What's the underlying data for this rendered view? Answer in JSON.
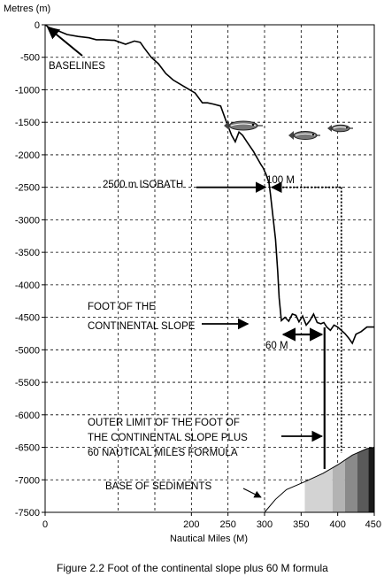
{
  "chart_data": {
    "type": "line",
    "title": "",
    "xlabel": "Nautical Miles (M)",
    "ylabel": "Metres (m)",
    "xlim": [
      0,
      450
    ],
    "ylim": [
      -7500,
      0
    ],
    "x_ticks": [
      0,
      200,
      250,
      300,
      350,
      400,
      450
    ],
    "x_tick_labels": [
      "0",
      "200",
      "250",
      "300",
      "350",
      "400",
      "450"
    ],
    "y_ticks": [
      0,
      -500,
      -1000,
      -1500,
      -2000,
      -2500,
      -3000,
      -3500,
      -4000,
      -4500,
      -5000,
      -5500,
      -6000,
      -6500,
      -7000,
      -7500
    ],
    "y_tick_labels": [
      "0",
      "-500",
      "-1000",
      "-1500",
      "-2000",
      "-2500",
      "-3000",
      "-3500",
      "-4000",
      "-4500",
      "-5000",
      "-5500",
      "-6000",
      "-6500",
      "-7000",
      "-7500"
    ],
    "grid_x": [
      100,
      150,
      200,
      250,
      300,
      350,
      400
    ],
    "grid_y": [
      -500,
      -1000,
      -1500,
      -2000,
      -2500,
      -3000,
      -3500,
      -4000,
      -4500,
      -5000,
      -5500,
      -6000,
      -6500,
      -7000
    ],
    "grid": true,
    "series": [
      {
        "x": [
          0,
          5,
          15,
          30,
          45,
          60,
          70,
          80,
          95,
          110,
          122,
          130,
          135,
          145,
          155,
          165,
          175,
          190,
          205,
          215,
          222,
          230,
          240,
          248,
          255,
          260,
          265,
          270,
          277,
          285,
          290,
          295,
          298,
          302,
          306,
          308,
          311,
          315,
          318,
          320,
          323,
          328,
          333,
          338,
          343,
          347,
          352,
          357,
          362,
          367,
          372,
          377,
          381,
          385,
          390,
          395,
          400,
          405,
          410,
          415,
          420,
          425,
          432,
          440,
          450
        ],
        "y": [
          0,
          -40,
          -80,
          -150,
          -180,
          -200,
          -230,
          -230,
          -240,
          -300,
          -250,
          -270,
          -350,
          -500,
          -600,
          -750,
          -850,
          -950,
          -1050,
          -1200,
          -1200,
          -1220,
          -1250,
          -1500,
          -1700,
          -1800,
          -1650,
          -1700,
          -1820,
          -1950,
          -2050,
          -2150,
          -2200,
          -2300,
          -2430,
          -2600,
          -2900,
          -3300,
          -3800,
          -4200,
          -4550,
          -4500,
          -4560,
          -4450,
          -4470,
          -4570,
          -4480,
          -4620,
          -4550,
          -4450,
          -4580,
          -4600,
          -4580,
          -4650,
          -4700,
          -4620,
          -4650,
          -4700,
          -4750,
          -4820,
          -4900,
          -4760,
          -4720,
          -4650,
          -4650
        ]
      }
    ],
    "sediment_blocks": [
      {
        "x0": 355,
        "x1": 393,
        "color": "#d3d3d3"
      },
      {
        "x0": 393,
        "x1": 410,
        "color": "#b3b3b3"
      },
      {
        "x0": 410,
        "x1": 427,
        "color": "#8a8a8a"
      },
      {
        "x0": 427,
        "x1": 442,
        "color": "#5a5a5a"
      },
      {
        "x0": 442,
        "x1": 450,
        "color": "#1a1a1a"
      }
    ],
    "sediment_top": {
      "x": [
        300,
        315,
        330,
        355,
        380,
        400,
        420,
        440,
        450
      ],
      "y": [
        -7500,
        -7300,
        -7150,
        -7030,
        -6900,
        -6770,
        -6620,
        -6520,
        -6500
      ]
    },
    "annotations": [
      {
        "id": "baselines",
        "text": "BASELINES"
      },
      {
        "id": "isobath",
        "text": "2500 m ISOBATH"
      },
      {
        "id": "distance100",
        "text": "100 M"
      },
      {
        "id": "foot_line1",
        "text": "FOOT OF THE"
      },
      {
        "id": "foot_line2",
        "text": "CONTINENTAL SLOPE"
      },
      {
        "id": "distance60",
        "text": "60 M"
      },
      {
        "id": "outer_line1",
        "text": "OUTER LIMIT OF THE FOOT OF"
      },
      {
        "id": "outer_line2",
        "text": "THE CONTINENTAL SLOPE PLUS"
      },
      {
        "id": "outer_line3",
        "text": "60 NAUTICAL MILES FORMULA"
      },
      {
        "id": "sediments",
        "text": "BASE OF SEDIMENTS"
      }
    ],
    "markers": {
      "isobath_point": [
        305,
        -2500
      ],
      "foot_point": [
        322,
        -4550
      ],
      "outer_limit_x": 382,
      "hundred_m_end_x": 405
    },
    "fish_icons": [
      "fish-icon",
      "fish-icon",
      "fish-icon"
    ]
  },
  "caption": "Figure 2.2  Foot of the continental slope plus 60 M formula"
}
